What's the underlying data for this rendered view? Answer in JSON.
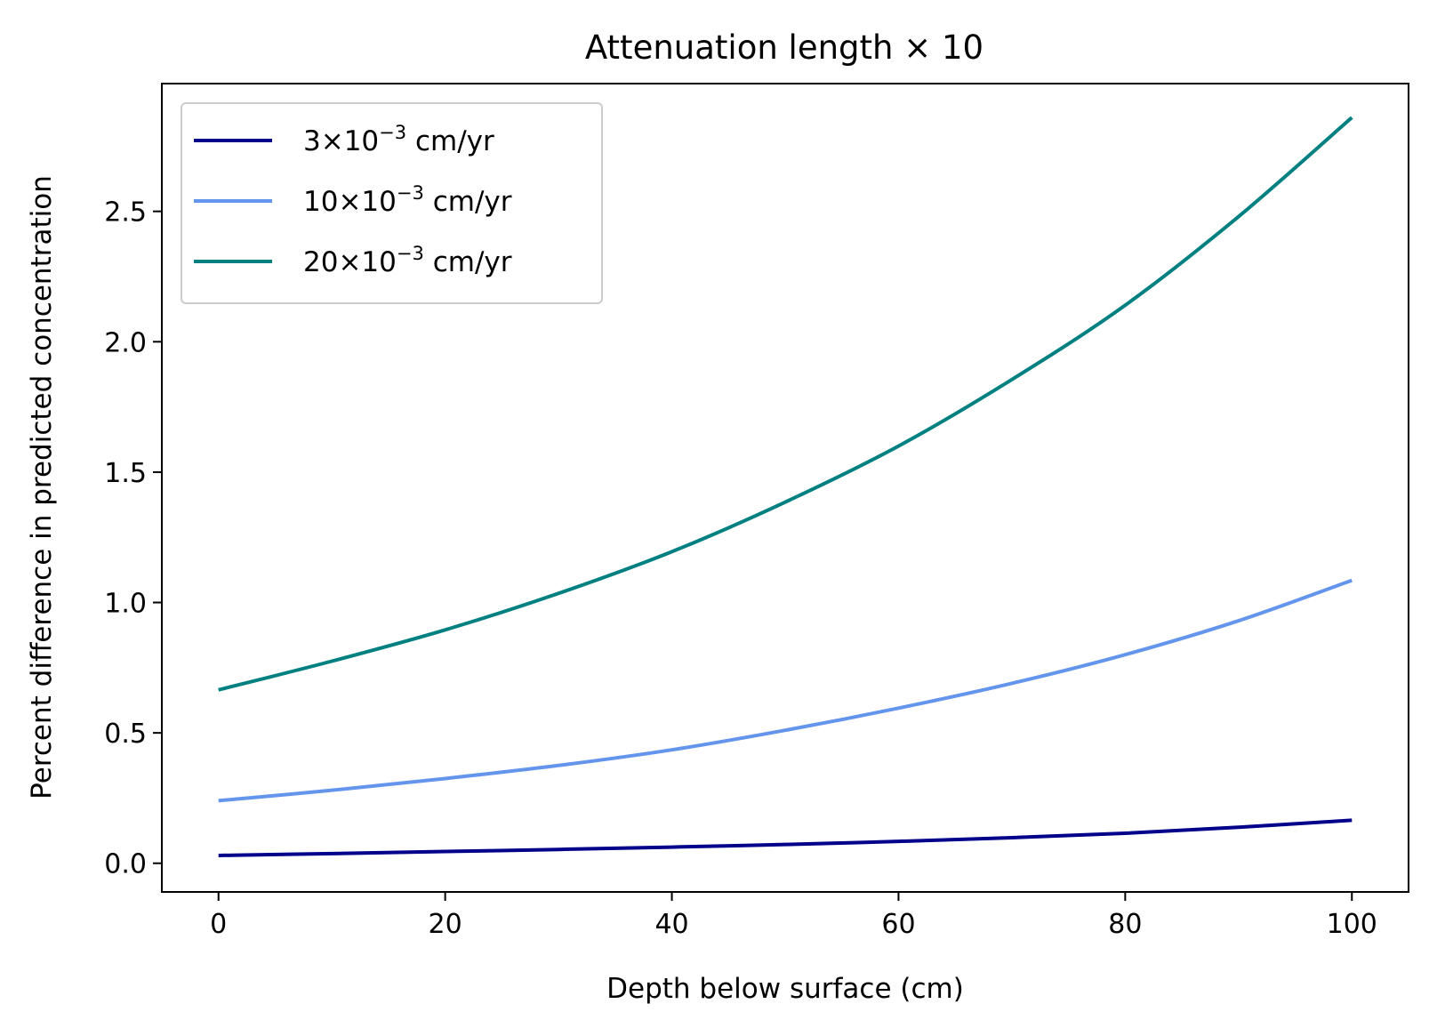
{
  "chart_data": {
    "type": "line",
    "title": "Attenuation length × 10",
    "xlabel": "Depth below surface (cm)",
    "ylabel": "Percent difference in predicted concentration",
    "xlim": [
      -5,
      105
    ],
    "ylim": [
      -0.11,
      2.99
    ],
    "xticks": [
      0,
      20,
      40,
      60,
      80,
      100
    ],
    "xtick_labels": [
      "0",
      "20",
      "40",
      "60",
      "80",
      "100"
    ],
    "yticks": [
      0.0,
      0.5,
      1.0,
      1.5,
      2.0,
      2.5
    ],
    "ytick_labels": [
      "0.0",
      "0.5",
      "1.0",
      "1.5",
      "2.0",
      "2.5"
    ],
    "grid": false,
    "legend_position": "upper-left",
    "x": [
      0,
      10,
      20,
      30,
      40,
      50,
      60,
      70,
      80,
      90,
      100
    ],
    "series": [
      {
        "name": "3×10−3 cm/yr",
        "name_parts": {
          "base": "3×10",
          "exp": "−3",
          "unit": " cm/yr"
        },
        "color": "#00008b",
        "values": [
          0.03,
          0.037,
          0.045,
          0.053,
          0.062,
          0.072,
          0.084,
          0.098,
          0.115,
          0.138,
          0.165
        ]
      },
      {
        "name": "10×10−3 cm/yr",
        "name_parts": {
          "base": "10×10",
          "exp": "−3",
          "unit": " cm/yr"
        },
        "color": "#6495ed",
        "values": [
          0.24,
          0.28,
          0.325,
          0.375,
          0.435,
          0.51,
          0.595,
          0.69,
          0.8,
          0.93,
          1.085
        ]
      },
      {
        "name": "20×10−3 cm/yr",
        "name_parts": {
          "base": "20×10",
          "exp": "−3",
          "unit": " cm/yr"
        },
        "color": "#008080",
        "values": [
          0.665,
          0.775,
          0.895,
          1.035,
          1.195,
          1.385,
          1.6,
          1.855,
          2.14,
          2.48,
          2.86
        ]
      }
    ]
  }
}
